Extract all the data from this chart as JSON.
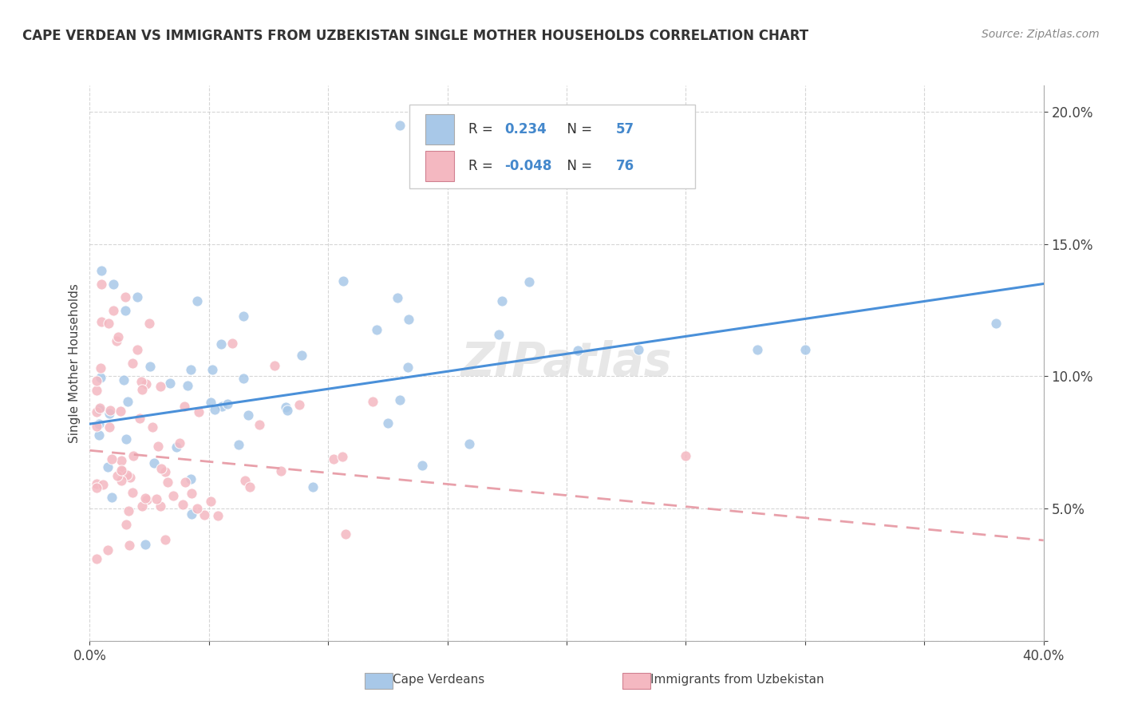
{
  "title": "CAPE VERDEAN VS IMMIGRANTS FROM UZBEKISTAN SINGLE MOTHER HOUSEHOLDS CORRELATION CHART",
  "source": "Source: ZipAtlas.com",
  "ylabel": "Single Mother Households",
  "xlim": [
    0.0,
    0.4
  ],
  "ylim": [
    0.0,
    0.21
  ],
  "series1_label": "Cape Verdeans",
  "series1_color": "#a8c8e8",
  "series1_R": "0.234",
  "series1_N": "57",
  "series2_label": "Immigrants from Uzbekistan",
  "series2_color": "#f4b8c1",
  "series2_R": "-0.048",
  "series2_N": "76",
  "line1_color": "#4a90d9",
  "line2_color": "#e8a0aa",
  "watermark": "ZIPatlas",
  "cv_line_start_y": 0.082,
  "cv_line_end_y": 0.135,
  "uz_line_start_y": 0.072,
  "uz_line_end_y": 0.038
}
